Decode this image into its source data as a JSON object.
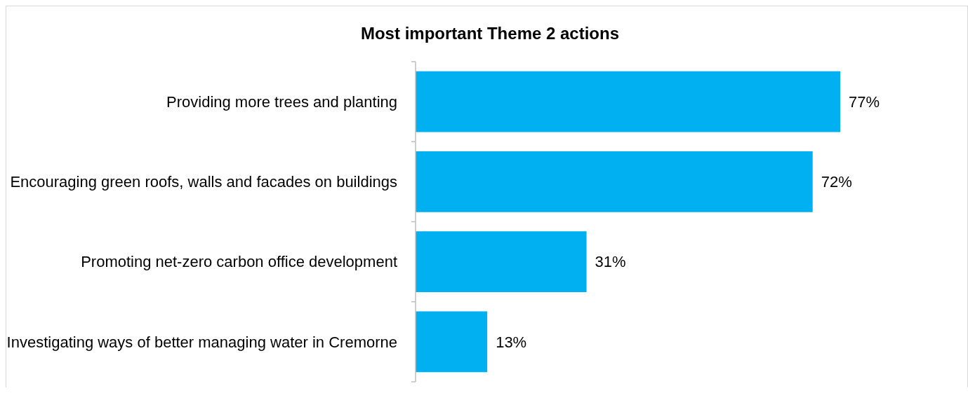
{
  "chart_data": {
    "type": "bar",
    "orientation": "horizontal",
    "title": "Most important Theme 2 actions",
    "categories": [
      "Providing more trees and planting",
      "Encouraging green roofs, walls and facades on buildings",
      "Promoting net-zero carbon office development",
      "Investigating ways of better managing water in Cremorne"
    ],
    "values": [
      77,
      72,
      31,
      13
    ],
    "color": "#00b0f0",
    "value_labels": [
      "77%",
      "72%",
      "31%",
      "13%"
    ]
  }
}
